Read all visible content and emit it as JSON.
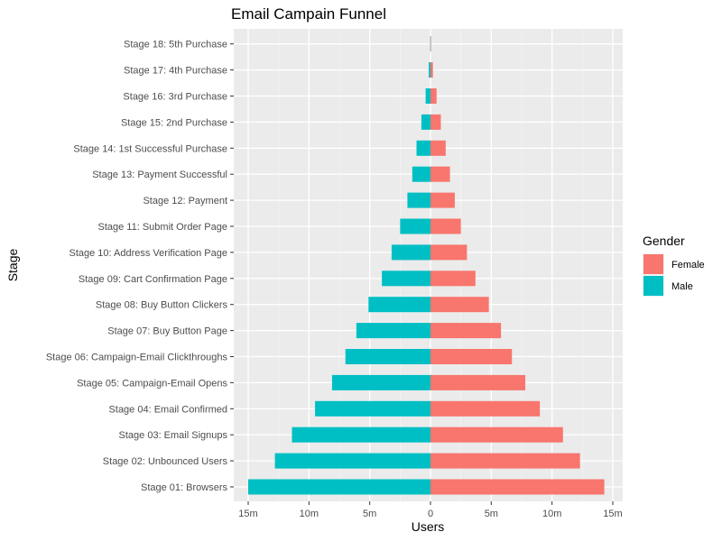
{
  "chart_data": {
    "type": "bar",
    "orientation": "horizontal-diverging",
    "title": "Email Campain Funnel",
    "xlabel": "Users",
    "ylabel": "Stage",
    "xlim": [
      -15000000,
      15000000
    ],
    "xticks": [
      {
        "value": -15000000,
        "label": "15m"
      },
      {
        "value": -10000000,
        "label": "10m"
      },
      {
        "value": -5000000,
        "label": "5m"
      },
      {
        "value": 0,
        "label": "0"
      },
      {
        "value": 5000000,
        "label": "5m"
      },
      {
        "value": 10000000,
        "label": "10m"
      },
      {
        "value": 15000000,
        "label": "15m"
      }
    ],
    "legend": {
      "title": "Gender",
      "position": "right"
    },
    "categories": [
      "Stage 01: Browsers",
      "Stage 02: Unbounced Users",
      "Stage 03: Email Signups",
      "Stage 04: Email Confirmed",
      "Stage 05: Campaign-Email Opens",
      "Stage 06: Campaign-Email Clickthroughs",
      "Stage 07: Buy Button Page",
      "Stage 08: Buy Button Clickers",
      "Stage 09: Cart Confirmation Page",
      "Stage 10: Address Verification Page",
      "Stage 11: Submit Order Page",
      "Stage 12: Payment",
      "Stage 13: Payment Successful",
      "Stage 14: 1st Successful Purchase",
      "Stage 15: 2nd Purchase",
      "Stage 16: 3rd Purchase",
      "Stage 17: 4th Purchase",
      "Stage 18: 5th Purchase"
    ],
    "series": [
      {
        "name": "Female",
        "color": "#F8766D",
        "direction": "positive",
        "values": [
          14300000,
          12300000,
          10900000,
          9000000,
          7800000,
          6700000,
          5800000,
          4800000,
          3700000,
          3000000,
          2500000,
          2000000,
          1600000,
          1250000,
          850000,
          500000,
          200000,
          50000
        ]
      },
      {
        "name": "Male",
        "color": "#00BFC4",
        "direction": "negative",
        "values": [
          15000000,
          12800000,
          11400000,
          9500000,
          8100000,
          7000000,
          6100000,
          5100000,
          4000000,
          3200000,
          2500000,
          1900000,
          1500000,
          1150000,
          750000,
          400000,
          150000,
          50000
        ]
      }
    ],
    "top_stage_color": "#BEBEBE"
  }
}
